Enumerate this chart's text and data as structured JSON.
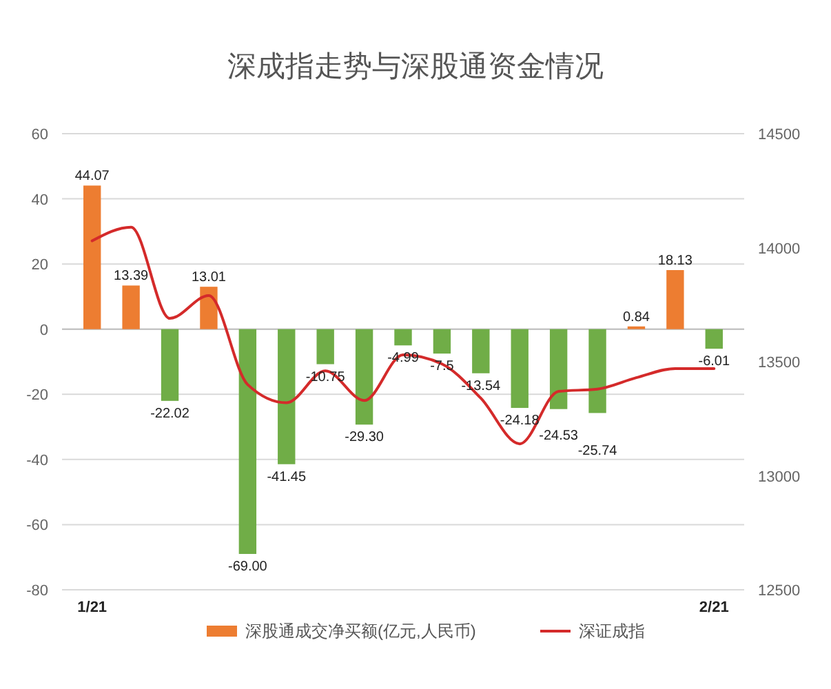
{
  "chart_data": {
    "type": "bar",
    "title": "深成指走势与深股通资金情况",
    "categories": [
      "1/21",
      null,
      null,
      null,
      null,
      null,
      null,
      null,
      null,
      null,
      null,
      null,
      null,
      null,
      null,
      null,
      "2/21"
    ],
    "series": [
      {
        "name": "深股通成交净买额(亿元,人民币)",
        "color": "#ed7d31",
        "colors": [
          "#ed7d31",
          "#ed7d31",
          "#70ad47",
          "#ed7d31",
          "#70ad47",
          "#70ad47",
          "#70ad47",
          "#70ad47",
          "#70ad47",
          "#70ad47",
          "#70ad47",
          "#70ad47",
          "#70ad47",
          "#70ad47",
          "#ed7d31",
          "#ed7d31",
          "#70ad47"
        ],
        "values": [
          44.07,
          13.39,
          -22.02,
          13.01,
          -69.0,
          -41.45,
          -10.75,
          -29.3,
          -4.99,
          -7.5,
          -13.54,
          -24.18,
          -24.53,
          -25.74,
          0.84,
          18.13,
          -6.01
        ],
        "value_labels": [
          "44.07",
          "13.39",
          "-22.02",
          "13.01",
          "-69.00",
          "-41.45",
          "-10.75",
          "-29.30",
          "-4.99",
          "-7.5",
          "-13.54",
          "-24.18",
          "-24.53",
          "-25.74",
          "0.84",
          "18.13",
          "-6.01"
        ]
      },
      {
        "name": "深证成指",
        "type": "line",
        "axis": "y2",
        "color": "#d42a2a",
        "values": [
          14030,
          14090,
          13690,
          13790,
          13400,
          13320,
          13460,
          13330,
          13530,
          13490,
          13340,
          13140,
          13370,
          13380,
          13430,
          13470,
          13470
        ]
      }
    ],
    "ylim": [
      -80,
      60
    ],
    "yticks": [
      -80,
      -60,
      -40,
      -20,
      0,
      20,
      40,
      60
    ],
    "y2lim": [
      12500,
      14500
    ],
    "y2ticks": [
      12500,
      13000,
      13500,
      14000,
      14500
    ],
    "grid": "y",
    "legend": "bottom"
  }
}
